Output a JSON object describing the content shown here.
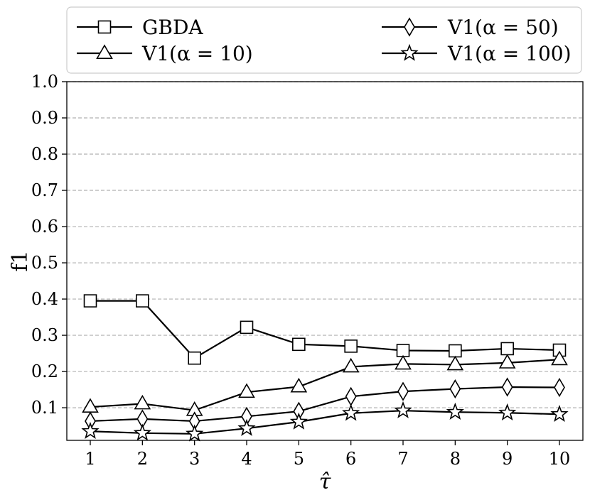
{
  "chart_data": {
    "type": "line",
    "xlabel": "τ̂",
    "ylabel": "f1",
    "x": [
      1,
      2,
      3,
      4,
      5,
      6,
      7,
      8,
      9,
      10
    ],
    "xticks": [
      "1",
      "2",
      "3",
      "4",
      "5",
      "6",
      "7",
      "8",
      "9",
      "10"
    ],
    "xlim": [
      0.55,
      10.45
    ],
    "ylim": [
      0.01,
      1.0
    ],
    "yticks": [
      "0.1",
      "0.2",
      "0.3",
      "0.4",
      "0.5",
      "0.6",
      "0.7",
      "0.8",
      "0.9",
      "1.0"
    ],
    "grid": "horizontal dashed",
    "legend_position": "top (above plot), two columns",
    "series": [
      {
        "name": "GBDA",
        "marker": "square",
        "values": [
          0.395,
          0.395,
          0.237,
          0.322,
          0.275,
          0.27,
          0.258,
          0.257,
          0.263,
          0.259
        ]
      },
      {
        "name": "V1(α = 10)",
        "marker": "triangle",
        "values": [
          0.102,
          0.111,
          0.093,
          0.143,
          0.158,
          0.213,
          0.221,
          0.219,
          0.224,
          0.233
        ]
      },
      {
        "name": "V1(α = 50)",
        "marker": "diamond",
        "values": [
          0.063,
          0.069,
          0.063,
          0.076,
          0.09,
          0.131,
          0.145,
          0.152,
          0.157,
          0.156
        ]
      },
      {
        "name": "V1(α = 100)",
        "marker": "star",
        "values": [
          0.035,
          0.03,
          0.028,
          0.043,
          0.061,
          0.085,
          0.092,
          0.088,
          0.086,
          0.082
        ]
      }
    ],
    "colors": {
      "line": "#000000",
      "marker_fill": "#ffffff",
      "grid": "#b0b0b0"
    }
  }
}
